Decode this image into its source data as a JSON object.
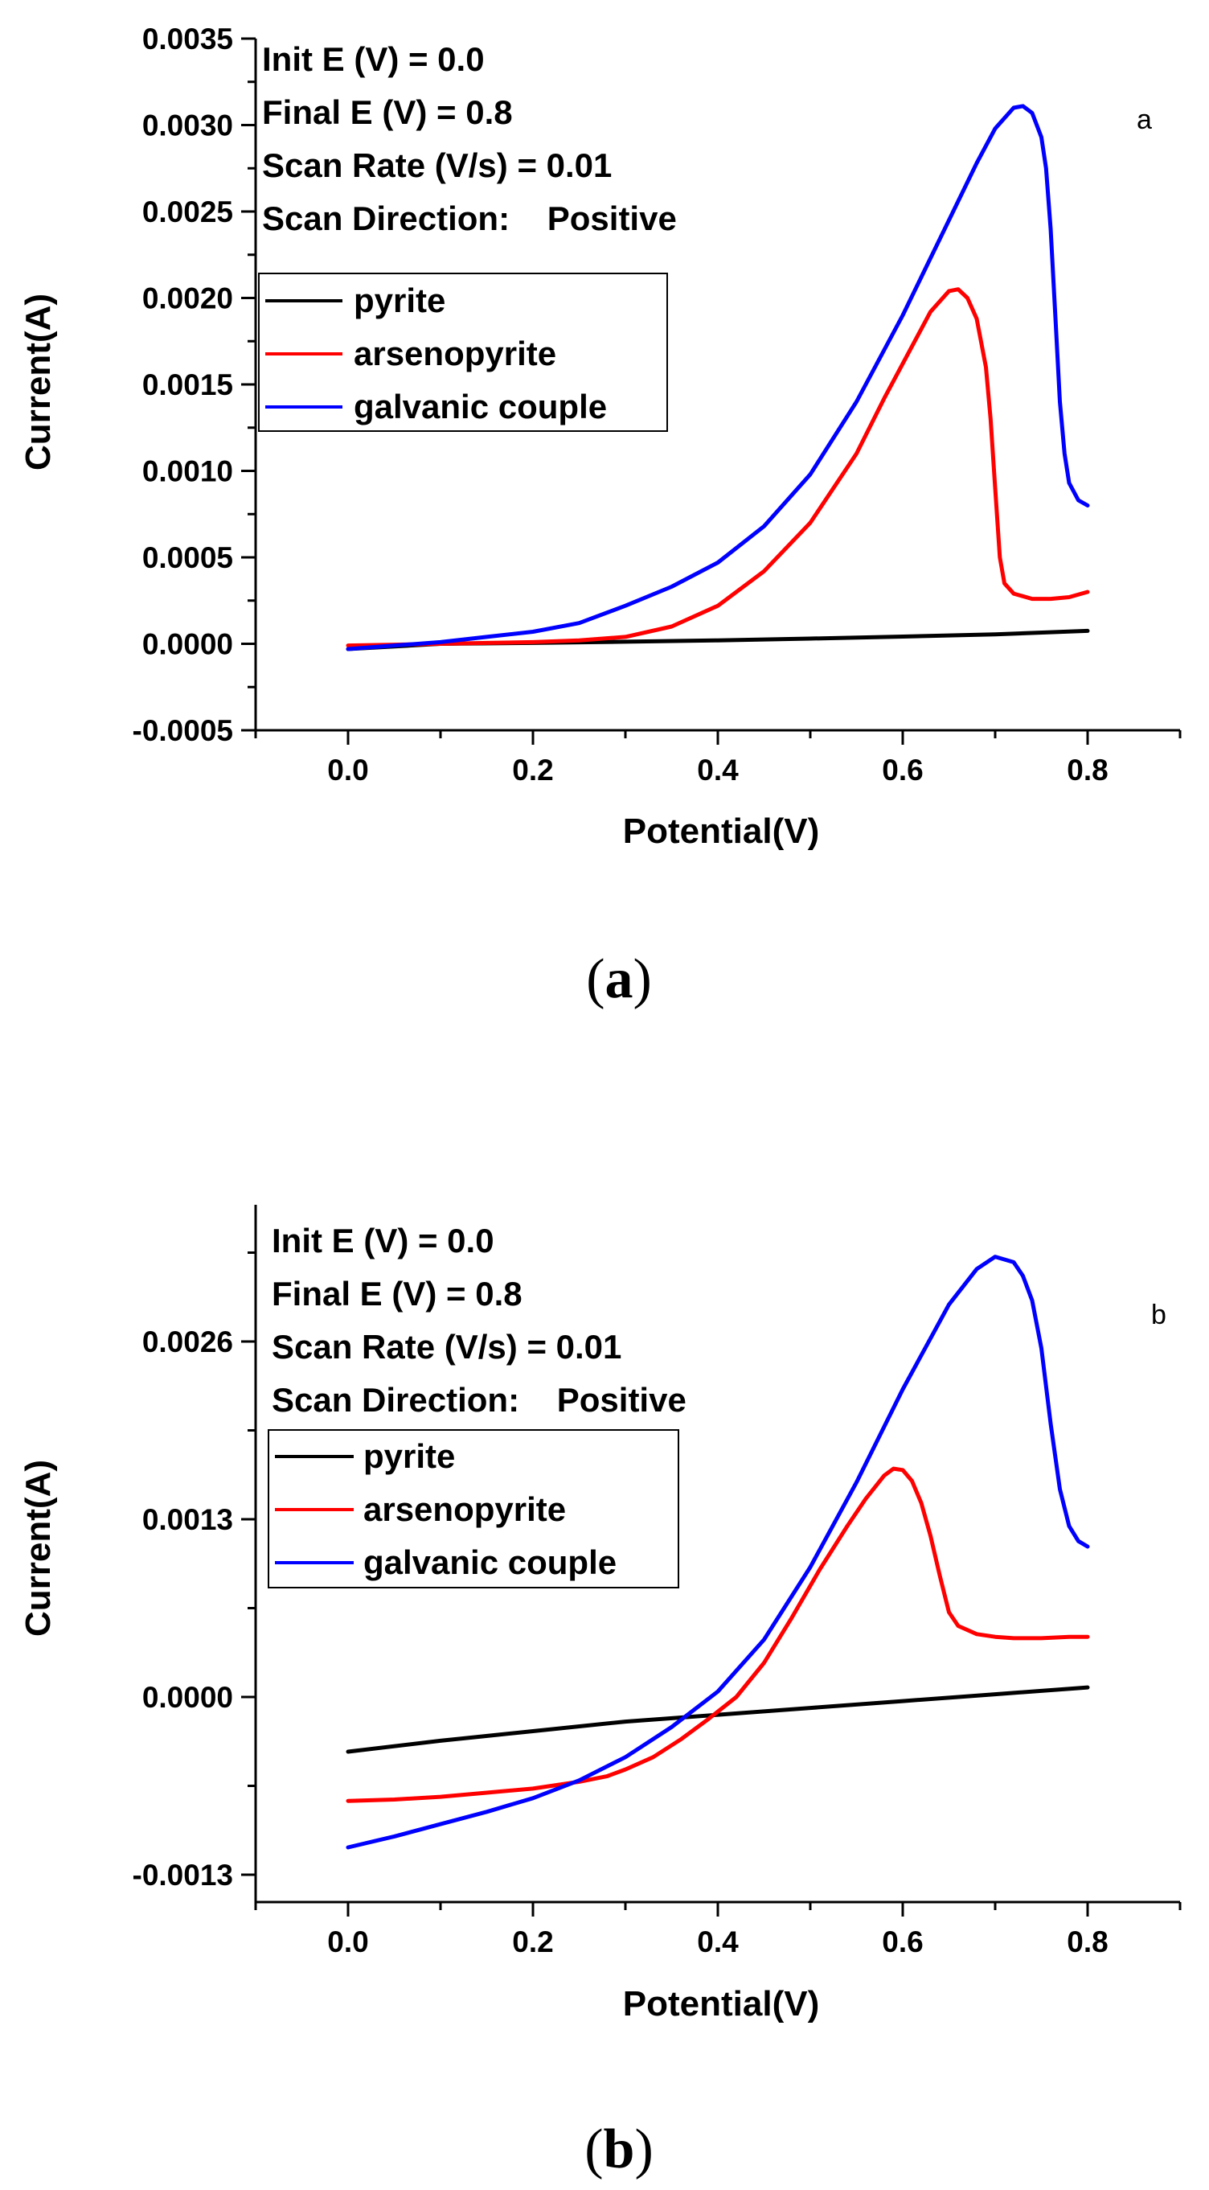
{
  "figure": {
    "captions": [
      {
        "open": "(",
        "letter": "a",
        "close": ")"
      },
      {
        "open": "(",
        "letter": "b",
        "close": ")"
      }
    ]
  },
  "chart_data": [
    {
      "type": "line",
      "panel_label": "a",
      "title": "",
      "xlabel": "Potential(V)",
      "ylabel": "Current(A)",
      "xlim": [
        -0.1,
        0.9
      ],
      "ylim": [
        -0.0005,
        0.0035
      ],
      "x_ticks": [
        "0.0",
        "0.2",
        "0.4",
        "0.6",
        "0.8"
      ],
      "y_ticks": [
        "-0.0005",
        "0.0000",
        "0.0005",
        "0.0010",
        "0.0015",
        "0.0020",
        "0.0025",
        "0.0030",
        "0.0035"
      ],
      "grid": false,
      "legend_position": "upper-left",
      "annotations": [
        "Init E (V) = 0.0",
        "Final E (V) = 0.8",
        "Scan Rate (V/s) = 0.01",
        "Scan Direction:    Positive"
      ],
      "series": [
        {
          "name": "pyrite",
          "color": "#000000",
          "x": [
            0.0,
            0.1,
            0.2,
            0.3,
            0.4,
            0.5,
            0.6,
            0.7,
            0.8
          ],
          "y": [
            -3e-05,
            0.0,
            5e-06,
            1.2e-05,
            2e-05,
            3e-05,
            4.2e-05,
            5.5e-05,
            7.5e-05
          ]
        },
        {
          "name": "arsenopyrite",
          "color": "#ff0000",
          "x": [
            0.0,
            0.05,
            0.1,
            0.15,
            0.2,
            0.25,
            0.3,
            0.35,
            0.4,
            0.45,
            0.5,
            0.55,
            0.58,
            0.61,
            0.63,
            0.65,
            0.66,
            0.67,
            0.68,
            0.69,
            0.695,
            0.7,
            0.705,
            0.71,
            0.72,
            0.74,
            0.76,
            0.78,
            0.8
          ],
          "y": [
            -1e-05,
            -5e-06,
            0.0,
            5e-06,
            1e-05,
            2e-05,
            4e-05,
            0.0001,
            0.00022,
            0.00042,
            0.0007,
            0.0011,
            0.00142,
            0.00172,
            0.00192,
            0.00204,
            0.00205,
            0.002,
            0.00188,
            0.0016,
            0.0013,
            0.0009,
            0.0005,
            0.00035,
            0.00029,
            0.00026,
            0.00026,
            0.00027,
            0.0003
          ]
        },
        {
          "name": "galvanic couple",
          "color": "#0000ff",
          "x": [
            0.0,
            0.05,
            0.1,
            0.15,
            0.2,
            0.25,
            0.3,
            0.35,
            0.4,
            0.45,
            0.5,
            0.55,
            0.6,
            0.65,
            0.68,
            0.7,
            0.72,
            0.73,
            0.74,
            0.75,
            0.755,
            0.76,
            0.765,
            0.77,
            0.775,
            0.78,
            0.79,
            0.8
          ],
          "y": [
            -3e-05,
            -1e-05,
            1e-05,
            4e-05,
            7e-05,
            0.00012,
            0.00022,
            0.00033,
            0.00047,
            0.00068,
            0.00098,
            0.0014,
            0.0019,
            0.00245,
            0.00278,
            0.00298,
            0.0031,
            0.00311,
            0.00307,
            0.00293,
            0.00275,
            0.0024,
            0.0019,
            0.0014,
            0.0011,
            0.00093,
            0.00083,
            0.0008
          ]
        }
      ],
      "corner_label": "a"
    },
    {
      "type": "line",
      "panel_label": "b",
      "title": "",
      "xlabel": "Potential(V)",
      "ylabel": "Current(A)",
      "xlim": [
        -0.1,
        0.9
      ],
      "ylim": [
        -0.0015,
        0.0036
      ],
      "x_ticks": [
        "0.0",
        "0.2",
        "0.4",
        "0.6",
        "0.8"
      ],
      "y_ticks": [
        "-0.0013",
        "0.0000",
        "0.0013",
        "0.0026"
      ],
      "grid": false,
      "legend_position": "upper-left",
      "annotations": [
        "Init E (V) = 0.0",
        "Final E (V) = 0.8",
        "Scan Rate (V/s) = 0.01",
        "Scan Direction:    Positive"
      ],
      "series": [
        {
          "name": "pyrite",
          "color": "#000000",
          "x": [
            0.0,
            0.1,
            0.2,
            0.3,
            0.4,
            0.5,
            0.6,
            0.7,
            0.8
          ],
          "y": [
            -0.0004,
            -0.00032,
            -0.00025,
            -0.00018,
            -0.00013,
            -8e-05,
            -3e-05,
            2e-05,
            7e-05
          ]
        },
        {
          "name": "arsenopyrite",
          "color": "#ff0000",
          "x": [
            0.0,
            0.05,
            0.1,
            0.15,
            0.2,
            0.25,
            0.28,
            0.3,
            0.33,
            0.36,
            0.39,
            0.42,
            0.45,
            0.48,
            0.51,
            0.54,
            0.56,
            0.58,
            0.59,
            0.6,
            0.61,
            0.62,
            0.63,
            0.64,
            0.65,
            0.66,
            0.68,
            0.7,
            0.72,
            0.75,
            0.78,
            0.8
          ],
          "y": [
            -0.00076,
            -0.00075,
            -0.00073,
            -0.0007,
            -0.00067,
            -0.00062,
            -0.00058,
            -0.00053,
            -0.00044,
            -0.00031,
            -0.00016,
            0.0,
            0.00025,
            0.00058,
            0.00093,
            0.00125,
            0.00145,
            0.00162,
            0.00167,
            0.00166,
            0.00158,
            0.00142,
            0.00118,
            0.00089,
            0.00062,
            0.00052,
            0.00046,
            0.00044,
            0.00043,
            0.00043,
            0.00044,
            0.00044
          ]
        },
        {
          "name": "galvanic couple",
          "color": "#0000ff",
          "x": [
            0.0,
            0.05,
            0.1,
            0.15,
            0.2,
            0.25,
            0.3,
            0.35,
            0.4,
            0.45,
            0.5,
            0.55,
            0.6,
            0.65,
            0.68,
            0.7,
            0.72,
            0.73,
            0.74,
            0.75,
            0.76,
            0.77,
            0.78,
            0.79,
            0.8
          ],
          "y": [
            -0.0011,
            -0.00102,
            -0.00093,
            -0.00084,
            -0.00074,
            -0.00061,
            -0.00044,
            -0.00022,
            4e-05,
            0.00042,
            0.00095,
            0.00157,
            0.00225,
            0.00287,
            0.00313,
            0.00322,
            0.00318,
            0.00308,
            0.0029,
            0.00255,
            0.002,
            0.00152,
            0.00125,
            0.00114,
            0.0011
          ]
        }
      ],
      "corner_label": "b"
    }
  ]
}
